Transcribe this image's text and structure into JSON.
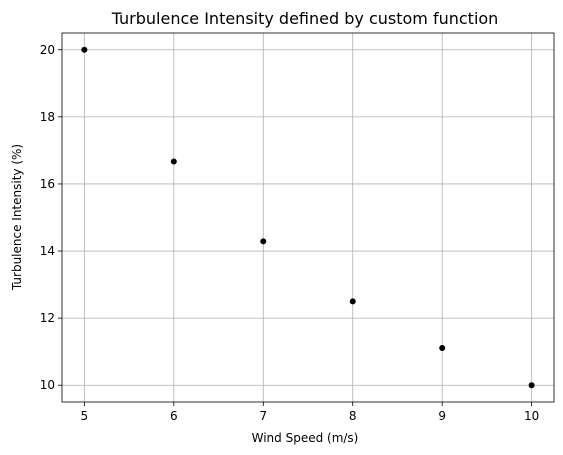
{
  "chart_data": {
    "type": "scatter",
    "title": "Turbulence Intensity defined by custom function",
    "xlabel": "Wind Speed (m/s)",
    "ylabel": "Turbulence Intensity (%)",
    "x": [
      5,
      6,
      7,
      8,
      9,
      10
    ],
    "y": [
      20.0,
      16.67,
      14.29,
      12.5,
      11.11,
      10.0
    ],
    "xlim": [
      4.75,
      10.25
    ],
    "ylim": [
      9.5,
      20.5
    ],
    "xticks": [
      5,
      6,
      7,
      8,
      9,
      10
    ],
    "yticks": [
      10,
      12,
      14,
      16,
      18,
      20
    ],
    "xtick_labels": [
      "5",
      "6",
      "7",
      "8",
      "9",
      "10"
    ],
    "ytick_labels": [
      "10",
      "12",
      "14",
      "16",
      "18",
      "20"
    ],
    "grid": true,
    "marker_color": "#000000",
    "grid_color": "#b0b0b0"
  }
}
